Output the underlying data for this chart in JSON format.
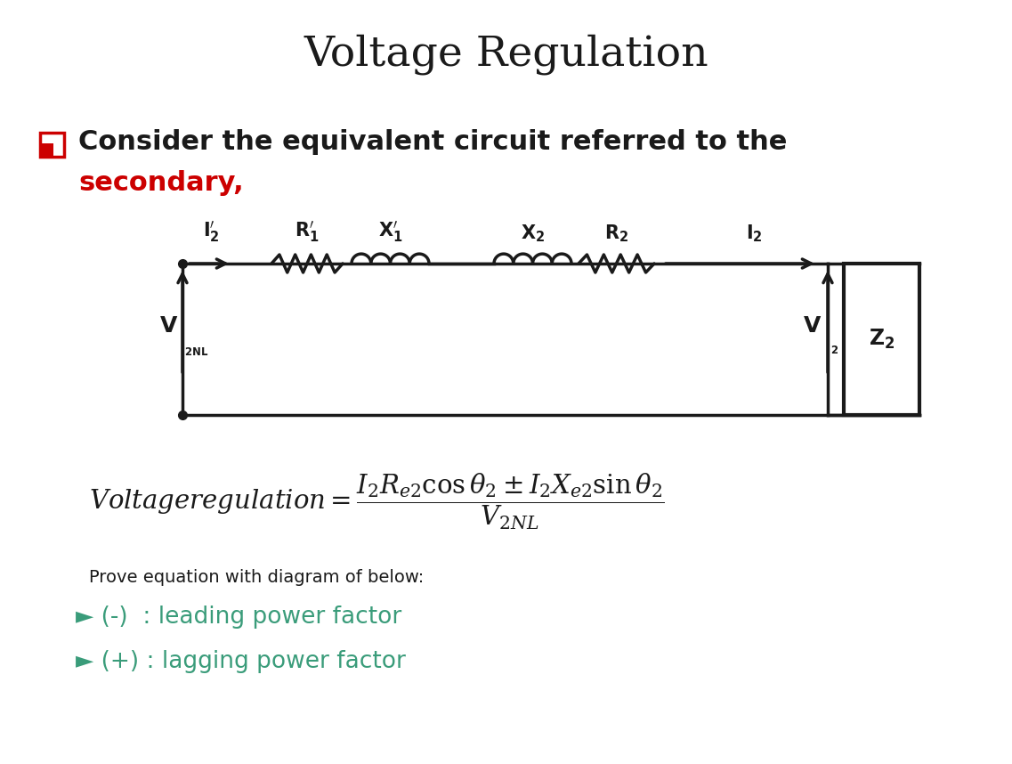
{
  "title": "Voltage Regulation",
  "title_fontsize": 34,
  "bg_color": "#ffffff",
  "text_black": "#1a1a1a",
  "text_red": "#cc0000",
  "text_green": "#3a9c7a",
  "bullet_text": "Consider the equivalent circuit referred to the",
  "bullet_text2": "secondary,",
  "prove_text": "Prove equation with diagram of below:",
  "leading_text": "► (-)  : leading power factor",
  "lagging_text": "► (+) : lagging power factor",
  "fig_width": 11.37,
  "fig_height": 8.58,
  "dpi": 100
}
